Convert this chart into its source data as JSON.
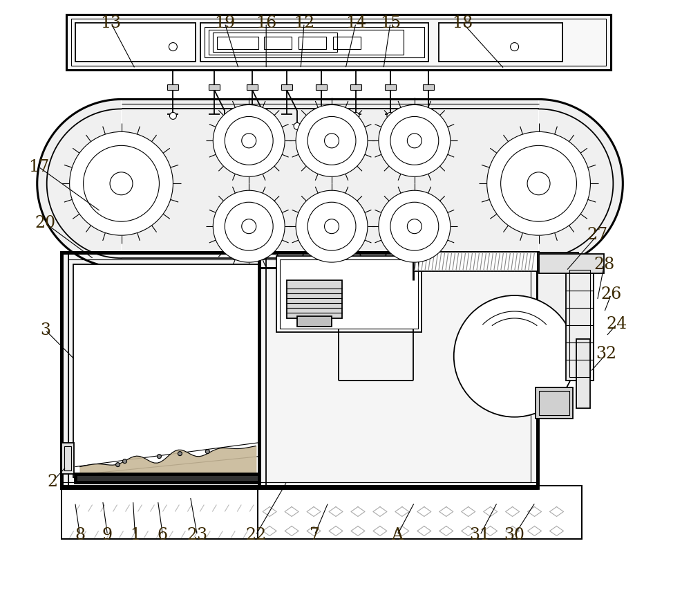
{
  "bg_color": "#ffffff",
  "line_color": "#000000",
  "label_color": "#3a2800",
  "fig_width": 10.0,
  "fig_height": 8.6,
  "annotations": {
    "13": {
      "lpos": [
        0.16,
        0.962
      ],
      "aend": [
        0.195,
        0.885
      ]
    },
    "19": {
      "lpos": [
        0.325,
        0.962
      ],
      "aend": [
        0.345,
        0.885
      ]
    },
    "16": {
      "lpos": [
        0.385,
        0.962
      ],
      "aend": [
        0.385,
        0.885
      ]
    },
    "12": {
      "lpos": [
        0.44,
        0.962
      ],
      "aend": [
        0.435,
        0.885
      ]
    },
    "14": {
      "lpos": [
        0.515,
        0.962
      ],
      "aend": [
        0.5,
        0.885
      ]
    },
    "15": {
      "lpos": [
        0.565,
        0.962
      ],
      "aend": [
        0.555,
        0.885
      ]
    },
    "18": {
      "lpos": [
        0.67,
        0.962
      ],
      "aend": [
        0.73,
        0.885
      ]
    },
    "17": {
      "lpos": [
        0.055,
        0.72
      ],
      "aend": [
        0.145,
        0.645
      ]
    },
    "20": {
      "lpos": [
        0.065,
        0.625
      ],
      "aend": [
        0.135,
        0.565
      ]
    },
    "27": {
      "lpos": [
        0.865,
        0.605
      ],
      "aend": [
        0.82,
        0.545
      ]
    },
    "28": {
      "lpos": [
        0.875,
        0.555
      ],
      "aend": [
        0.865,
        0.495
      ]
    },
    "26": {
      "lpos": [
        0.885,
        0.505
      ],
      "aend": [
        0.875,
        0.475
      ]
    },
    "24": {
      "lpos": [
        0.893,
        0.455
      ],
      "aend": [
        0.878,
        0.435
      ]
    },
    "32": {
      "lpos": [
        0.878,
        0.405
      ],
      "aend": [
        0.855,
        0.375
      ]
    },
    "3": {
      "lpos": [
        0.065,
        0.445
      ],
      "aend": [
        0.108,
        0.395
      ]
    },
    "2": {
      "lpos": [
        0.075,
        0.19
      ],
      "aend": [
        0.095,
        0.215
      ]
    },
    "8": {
      "lpos": [
        0.115,
        0.1
      ],
      "aend": [
        0.108,
        0.155
      ]
    },
    "9": {
      "lpos": [
        0.155,
        0.1
      ],
      "aend": [
        0.148,
        0.158
      ]
    },
    "1": {
      "lpos": [
        0.195,
        0.1
      ],
      "aend": [
        0.192,
        0.158
      ]
    },
    "6": {
      "lpos": [
        0.235,
        0.1
      ],
      "aend": [
        0.228,
        0.158
      ]
    },
    "23": {
      "lpos": [
        0.285,
        0.1
      ],
      "aend": [
        0.275,
        0.165
      ]
    },
    "22": {
      "lpos": [
        0.37,
        0.1
      ],
      "aend": [
        0.415,
        0.19
      ]
    },
    "7": {
      "lpos": [
        0.455,
        0.1
      ],
      "aend": [
        0.475,
        0.155
      ]
    },
    "A": {
      "lpos": [
        0.575,
        0.1
      ],
      "aend": [
        0.6,
        0.155
      ]
    },
    "31": {
      "lpos": [
        0.695,
        0.1
      ],
      "aend": [
        0.72,
        0.155
      ]
    },
    "30": {
      "lpos": [
        0.745,
        0.1
      ],
      "aend": [
        0.775,
        0.155
      ]
    }
  }
}
